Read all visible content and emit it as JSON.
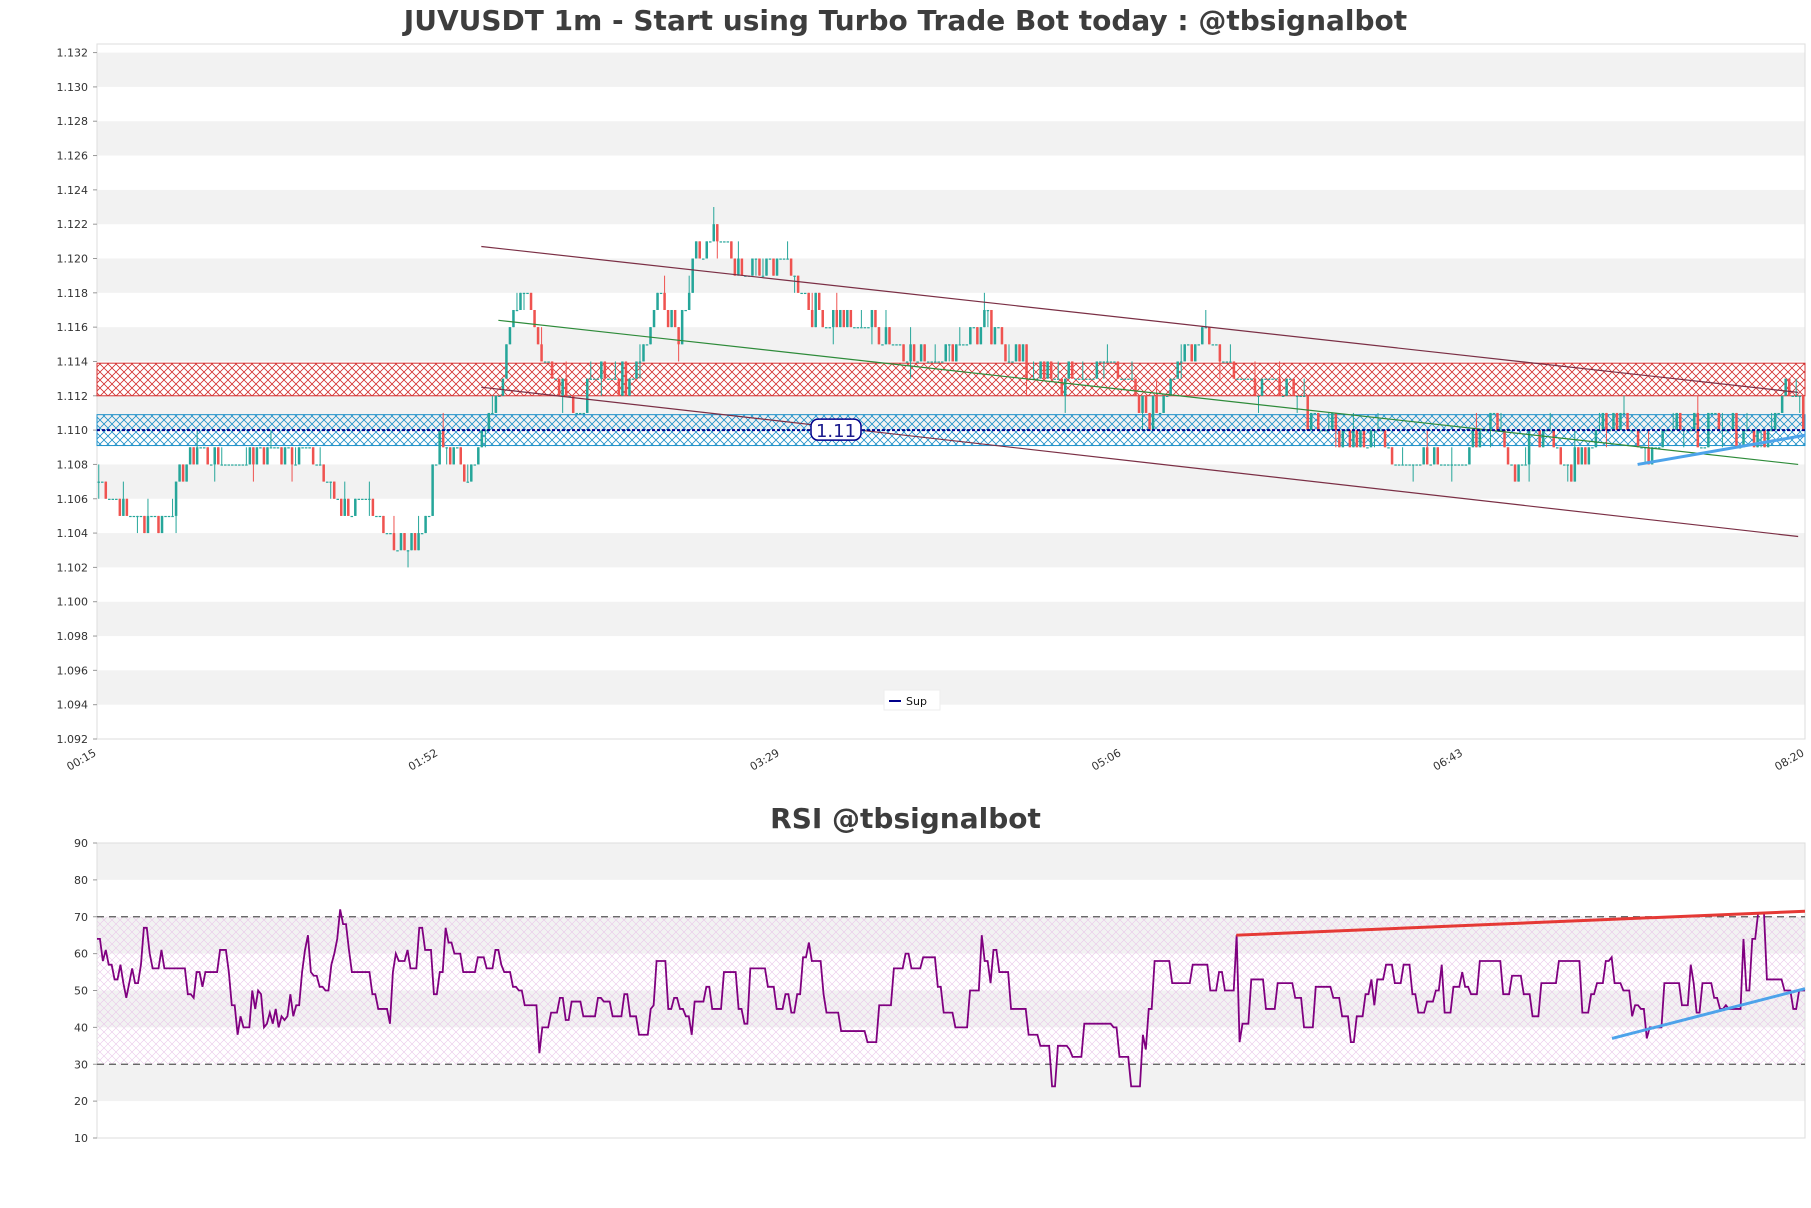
{
  "chart_data": [
    {
      "type": "candlestick",
      "title": "JUVUSDT 1m - Start using Turbo Trade Bot today : @tbsignalbot",
      "ylim": [
        1.092,
        1.1325
      ],
      "y_ticks": [
        "1.092",
        "1.094",
        "1.096",
        "1.098",
        "1.100",
        "1.102",
        "1.104",
        "1.106",
        "1.108",
        "1.110",
        "1.112",
        "1.114",
        "1.116",
        "1.118",
        "1.120",
        "1.122",
        "1.124",
        "1.126",
        "1.128",
        "1.130",
        "1.132"
      ],
      "x_ticks": [
        "00:15",
        "01:52",
        "03:29",
        "05:06",
        "06:43",
        "08:20"
      ],
      "grid": "horizontal bands",
      "legend": {
        "position": "bottom-center",
        "entries": [
          {
            "name": "Sup",
            "color": "#00008b"
          }
        ]
      },
      "support_level": 1.11,
      "support_label": "1.11",
      "zones": [
        {
          "low": 1.112,
          "high": 1.1139,
          "color": "#d32f2f"
        },
        {
          "low": 1.1091,
          "high": 1.1109,
          "color": "#1e90c8"
        }
      ],
      "trendlines": [
        {
          "from": [
            0.225,
            1.1207
          ],
          "to": [
            0.996,
            1.1122
          ],
          "color": "#7b2f45"
        },
        {
          "from": [
            0.225,
            1.1125
          ],
          "to": [
            0.996,
            1.1038
          ],
          "color": "#7b2f45"
        },
        {
          "from": [
            0.235,
            1.1164
          ],
          "to": [
            0.996,
            1.108
          ],
          "color": "#2e8b3a"
        },
        {
          "from": [
            0.902,
            1.108
          ],
          "to": [
            1.0,
            1.1097
          ],
          "color": "#4da3ea"
        }
      ],
      "colors": {
        "up": "#26a69a",
        "down": "#ef5350"
      }
    },
    {
      "type": "line",
      "title": "RSI @tbsignalbot",
      "ylim": [
        10,
        90
      ],
      "y_ticks": [
        "10",
        "20",
        "30",
        "40",
        "50",
        "60",
        "70",
        "80",
        "90"
      ],
      "overbought": 70,
      "oversold": 30,
      "series": [
        {
          "color": "#800080",
          "values": [
            64,
            64,
            58,
            61,
            57,
            57,
            53,
            53,
            57,
            52,
            48,
            52,
            56,
            52,
            52,
            57,
            67,
            67,
            60,
            56,
            56,
            56,
            61,
            56,
            56,
            56,
            56,
            56,
            56,
            56,
            56,
            49,
            49,
            48,
            55,
            55,
            51,
            55,
            55,
            55,
            55,
            55,
            61,
            61,
            61,
            55,
            46,
            46,
            38,
            43,
            40,
            40,
            40,
            50,
            45,
            50,
            49,
            40,
            41,
            44,
            41,
            45,
            40,
            43,
            42,
            43,
            49,
            43,
            46,
            46,
            55,
            61,
            65,
            55,
            54,
            54,
            51,
            51,
            50,
            50,
            57,
            60,
            64,
            72,
            68,
            68,
            61,
            55,
            55,
            55,
            55,
            55,
            55,
            55,
            49,
            49,
            45,
            45,
            45,
            45,
            41,
            55,
            60,
            58,
            58,
            58,
            61,
            56,
            56,
            56,
            67,
            67,
            61,
            61,
            61,
            49,
            49,
            55,
            55,
            67,
            63,
            63,
            60,
            60,
            60,
            55,
            55,
            55,
            55,
            55,
            59,
            59,
            59,
            56,
            56,
            56,
            61,
            61,
            57,
            55,
            55,
            55,
            51,
            51,
            50,
            50,
            46,
            46,
            46,
            46,
            46,
            33,
            40,
            40,
            40,
            44,
            44,
            44,
            48,
            48,
            42,
            42,
            47,
            47,
            47,
            47,
            43,
            43,
            43,
            43,
            43,
            48,
            48,
            47,
            47,
            47,
            43,
            43,
            43,
            43,
            49,
            49,
            43,
            43,
            43,
            38,
            38,
            38,
            38,
            45,
            46,
            58,
            58,
            58,
            58,
            45,
            45,
            48,
            48,
            45,
            45,
            43,
            43,
            38,
            47,
            47,
            47,
            47,
            51,
            51,
            45,
            45,
            45,
            45,
            55,
            55,
            55,
            55,
            55,
            45,
            45,
            41,
            41,
            56,
            56,
            56,
            56,
            56,
            56,
            51,
            51,
            51,
            45,
            45,
            45,
            49,
            49,
            44,
            44,
            49,
            49,
            59,
            59,
            63,
            58,
            58,
            58,
            58,
            49,
            44,
            44,
            44,
            44,
            44,
            39,
            39,
            39,
            39,
            39,
            39,
            39,
            39,
            39,
            36,
            36,
            36,
            36,
            46,
            46,
            46,
            46,
            46,
            56,
            56,
            56,
            56,
            60,
            60,
            56,
            56,
            56,
            56,
            59,
            59,
            59,
            59,
            59,
            51,
            51,
            44,
            44,
            44,
            44,
            40,
            40,
            40,
            40,
            40,
            50,
            50,
            50,
            50,
            65,
            58,
            58,
            52,
            61,
            61,
            55,
            55,
            55,
            55,
            45,
            45,
            45,
            45,
            45,
            45,
            38,
            38,
            38,
            38,
            35,
            35,
            35,
            35,
            24,
            24,
            35,
            35,
            35,
            35,
            34,
            32,
            32,
            32,
            32,
            41,
            41,
            41,
            41,
            41,
            41,
            41,
            41,
            41,
            41,
            40,
            40,
            32,
            32,
            32,
            32,
            24,
            24,
            24,
            24,
            38,
            34,
            45,
            45,
            58,
            58,
            58,
            58,
            58,
            58,
            52,
            52,
            52,
            52,
            52,
            52,
            52,
            57,
            57,
            57,
            57,
            57,
            57,
            50,
            50,
            50,
            55,
            55,
            50,
            50,
            50,
            50,
            65,
            36,
            41,
            41,
            41,
            53,
            53,
            53,
            53,
            53,
            45,
            45,
            45,
            45,
            52,
            52,
            52,
            52,
            52,
            52,
            48,
            48,
            48,
            40,
            40,
            40,
            40,
            51,
            51,
            51,
            51,
            51,
            51,
            48,
            48,
            48,
            43,
            43,
            43,
            36,
            36,
            43,
            43,
            43,
            49,
            49,
            53,
            46,
            53,
            53,
            53,
            57,
            57,
            57,
            52,
            52,
            52,
            57,
            57,
            57,
            49,
            49,
            44,
            44,
            44,
            47,
            47,
            47,
            50,
            50,
            57,
            44,
            44,
            44,
            51,
            51,
            51,
            55,
            51,
            51,
            49,
            49,
            49,
            58,
            58,
            58,
            58,
            58,
            58,
            58,
            58,
            49,
            49,
            49,
            54,
            54,
            54,
            54,
            49,
            49,
            49,
            43,
            43,
            43,
            52,
            52,
            52,
            52,
            52,
            52,
            58,
            58,
            58,
            58,
            58,
            58,
            58,
            58,
            44,
            44,
            44,
            49,
            49,
            52,
            52,
            52,
            58,
            58,
            59,
            52,
            52,
            52,
            50,
            50,
            50,
            43,
            46,
            46,
            45,
            45,
            37,
            40,
            40,
            40,
            40,
            40,
            52,
            52,
            52,
            52,
            52,
            52,
            46,
            46,
            46,
            57,
            52,
            44,
            44,
            52,
            52,
            52,
            52,
            48,
            48,
            45,
            45,
            46,
            45,
            45,
            45,
            45,
            45,
            64,
            50,
            50,
            64,
            64,
            71,
            71,
            71,
            53,
            53,
            53,
            53,
            53,
            53,
            50,
            50,
            50,
            45,
            45,
            50,
            50,
            50
          ]
        }
      ],
      "trendlines": [
        {
          "from": [
            0.667,
            65
          ],
          "to": [
            1.0,
            71.5
          ],
          "color": "#e53935"
        },
        {
          "from": [
            0.887,
            37
          ],
          "to": [
            1.0,
            50.5
          ],
          "color": "#4da3ea"
        }
      ]
    }
  ]
}
